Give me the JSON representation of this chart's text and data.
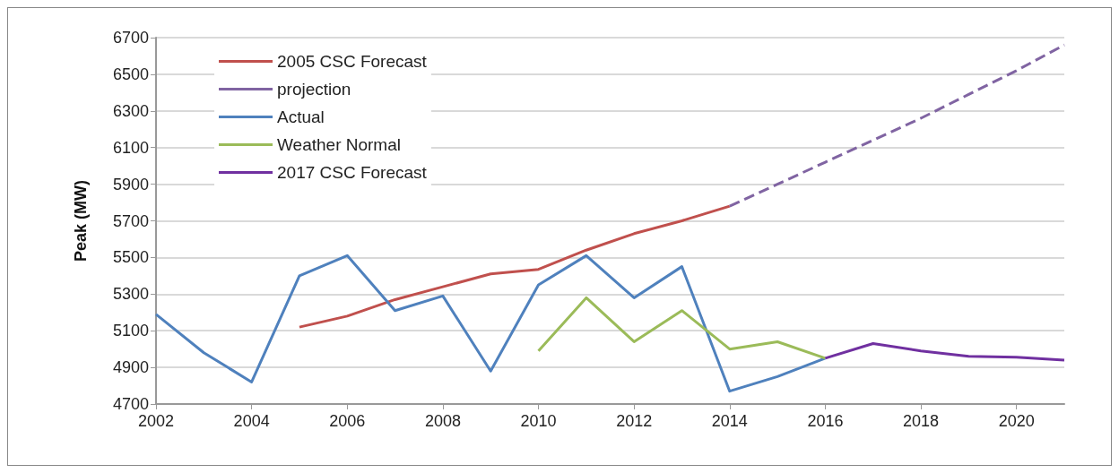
{
  "chart_data": {
    "type": "line",
    "ylabel": "Peak (MW)",
    "xlim": [
      2002,
      2021
    ],
    "xticks": [
      2002,
      2004,
      2006,
      2008,
      2010,
      2012,
      2014,
      2016,
      2018,
      2020
    ],
    "ylim": [
      4700,
      6700
    ],
    "yticks": [
      4700,
      4900,
      5100,
      5300,
      5500,
      5700,
      5900,
      6100,
      6300,
      6500,
      6700
    ],
    "grid": "y",
    "legend": "top left",
    "marker": "none",
    "series": [
      {
        "name": "2005 CSC Forecast",
        "color": "#c0504d",
        "x": [
          2005,
          2006,
          2007,
          2008,
          2009,
          2010,
          2011,
          2012,
          2013,
          2014
        ],
        "values": [
          5120,
          5180,
          5270,
          5340,
          5410,
          5435,
          5540,
          5630,
          5700,
          5780
        ]
      },
      {
        "name": "projection",
        "color": "#8064a2",
        "line_style": "dashed",
        "x": [
          2014,
          2015,
          2016,
          2017,
          2018,
          2019,
          2020,
          2021
        ],
        "values": [
          5780,
          5900,
          6020,
          6140,
          6260,
          6390,
          6520,
          6660
        ]
      },
      {
        "name": "Actual",
        "color": "#4f81bd",
        "x": [
          2002,
          2003,
          2004,
          2005,
          2006,
          2007,
          2008,
          2009,
          2010,
          2011,
          2012,
          2013,
          2014,
          2015,
          2016
        ],
        "values": [
          5190,
          4980,
          4820,
          5400,
          5510,
          5210,
          5290,
          4880,
          5350,
          5510,
          5280,
          5450,
          4770,
          4850,
          4950
        ]
      },
      {
        "name": "Weather Normal",
        "color": "#9bbb59",
        "x": [
          2010,
          2011,
          2012,
          2013,
          2014,
          2015,
          2016
        ],
        "values": [
          4990,
          5280,
          5040,
          5210,
          5000,
          5040,
          4950
        ]
      },
      {
        "name": "2017 CSC Forecast",
        "color": "#7030a0",
        "x": [
          2016,
          2017,
          2018,
          2019,
          2020,
          2021
        ],
        "values": [
          4950,
          5030,
          4990,
          4960,
          4955,
          4940
        ]
      }
    ]
  }
}
